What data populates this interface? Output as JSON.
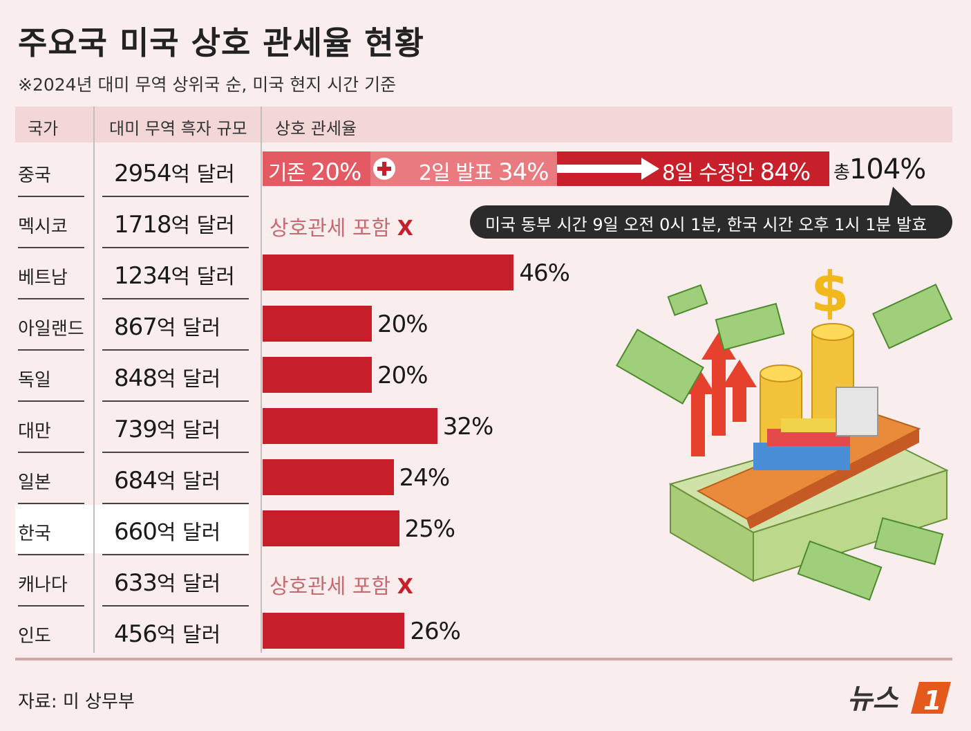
{
  "title": "주요국 미국 상호 관세율 현황",
  "subtitle": "※2024년 대미 무역 상위국 순, 미국 현지 시간 기준",
  "headers": {
    "country": "국가",
    "surplus": "대미 무역 흑자 규모",
    "tariff": "상호 관세율"
  },
  "china": {
    "seg1_label": "기존",
    "seg1_value": "20%",
    "seg2_label": "2일 발표",
    "seg2_value": "34%",
    "seg3_label": "8일 수정안",
    "seg3_value": "84%",
    "total_label": "총",
    "total_value": "104%"
  },
  "bubble": "미국 동부 시간 9일 오전 0시 1분, 한국 시간 오후 1시 1분 발효",
  "no_tariff_note": {
    "text": "상호관세 포함",
    "mark": "X"
  },
  "unit": "억 달러",
  "source": "자료: 미 상무부",
  "logo": {
    "text": "뉴스",
    "num": "1"
  },
  "colors": {
    "bar": "#c8202b",
    "header": "#f3d6d6",
    "background": "#f9eded"
  },
  "chart_data": {
    "type": "bar",
    "title": "주요국 미국 상호 관세율 현황",
    "categories": [
      "중국",
      "멕시코",
      "베트남",
      "아일랜드",
      "독일",
      "대만",
      "일본",
      "한국",
      "캐나다",
      "인도"
    ],
    "surplus_billion_100m_usd": [
      2954,
      1718,
      1234,
      867,
      848,
      739,
      684,
      660,
      633,
      456
    ],
    "tariff_labels": [
      "104%",
      "",
      "46%",
      "20%",
      "20%",
      "32%",
      "24%",
      "25%",
      "",
      "26%"
    ],
    "tariff_values": [
      104,
      null,
      46,
      20,
      20,
      32,
      24,
      25,
      null,
      26
    ],
    "highlight": "한국"
  }
}
